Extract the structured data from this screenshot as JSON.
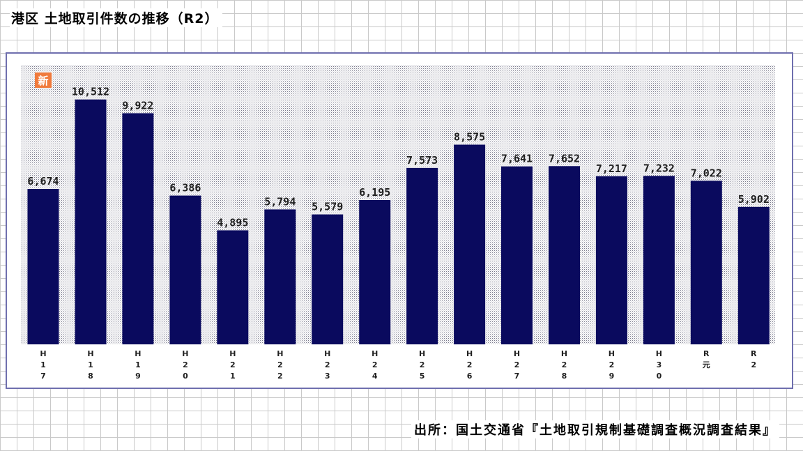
{
  "title": "港区 土地取引件数の推移（R2）",
  "source": "出所：国土交通省『土地取引規制基礎調査概況調査結果』",
  "new_badge": "新",
  "colors": {
    "bar": "#0a0a5e",
    "plot_bg": "#bcbcc8",
    "frame": "#6f6fae",
    "badge": "#f07a3c"
  },
  "chart_data": {
    "type": "bar",
    "title": "港区 土地取引件数の推移（R2）",
    "categories": [
      "H17",
      "H18",
      "H19",
      "H20",
      "H21",
      "H22",
      "H23",
      "H24",
      "H25",
      "H26",
      "H27",
      "H28",
      "H29",
      "H30",
      "R元",
      "R2"
    ],
    "category_labels": [
      [
        "H",
        "1",
        "7"
      ],
      [
        "H",
        "1",
        "8"
      ],
      [
        "H",
        "1",
        "9"
      ],
      [
        "H",
        "2",
        "0"
      ],
      [
        "H",
        "2",
        "1"
      ],
      [
        "H",
        "2",
        "2"
      ],
      [
        "H",
        "2",
        "3"
      ],
      [
        "H",
        "2",
        "4"
      ],
      [
        "H",
        "2",
        "5"
      ],
      [
        "H",
        "2",
        "6"
      ],
      [
        "H",
        "2",
        "7"
      ],
      [
        "H",
        "2",
        "8"
      ],
      [
        "H",
        "2",
        "9"
      ],
      [
        "H",
        "3",
        "0"
      ],
      [
        "R",
        "元"
      ],
      [
        "R",
        "2"
      ]
    ],
    "values": [
      6674,
      10512,
      9922,
      6386,
      4895,
      5794,
      5579,
      6195,
      7573,
      8575,
      7641,
      7652,
      7217,
      7232,
      7022,
      5902
    ],
    "value_labels": [
      "6,674",
      "10,512",
      "9,922",
      "6,386",
      "4,895",
      "5,794",
      "5,579",
      "6,195",
      "7,573",
      "8,575",
      "7,641",
      "7,652",
      "7,217",
      "7,232",
      "7,022",
      "5,902"
    ],
    "ylim": [
      0,
      12000
    ],
    "xlabel": "",
    "ylabel": "",
    "grid": false,
    "legend": "none"
  }
}
